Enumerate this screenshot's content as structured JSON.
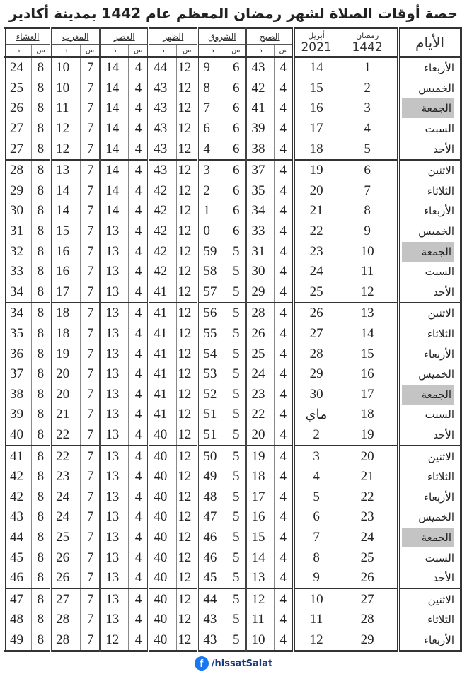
{
  "title": "حصة أوقات الصلاة لشهر رمضان المعظم عام 1442 بمدينة أكادير",
  "headers": {
    "days": "الأيام",
    "ramadan": "رمضان",
    "ramadan_year": "1442",
    "april": "أبريل",
    "april_year": "2021",
    "prayers": [
      "العشاء",
      "المغرب",
      "العصر",
      "الظهر",
      "الشروق",
      "الصبح"
    ],
    "minute_abbr": "د",
    "hour_abbr": "س"
  },
  "highlight_color": "#c4c4c4",
  "rows": [
    {
      "day": "الأربعاء",
      "ramadan": "1",
      "greg": "14",
      "fajr": [
        "4",
        "43"
      ],
      "shuruq": [
        "6",
        "9"
      ],
      "dhuhr": [
        "12",
        "44"
      ],
      "asr": [
        "4",
        "14"
      ],
      "maghrib": [
        "7",
        "10"
      ],
      "isha": [
        "8",
        "24"
      ]
    },
    {
      "day": "الخميس",
      "ramadan": "2",
      "greg": "15",
      "fajr": [
        "4",
        "42"
      ],
      "shuruq": [
        "6",
        "8"
      ],
      "dhuhr": [
        "12",
        "43"
      ],
      "asr": [
        "4",
        "14"
      ],
      "maghrib": [
        "7",
        "10"
      ],
      "isha": [
        "8",
        "25"
      ]
    },
    {
      "day": "الجمعة",
      "ramadan": "3",
      "greg": "16",
      "fajr": [
        "4",
        "41"
      ],
      "shuruq": [
        "6",
        "7"
      ],
      "dhuhr": [
        "12",
        "43"
      ],
      "asr": [
        "4",
        "14"
      ],
      "maghrib": [
        "7",
        "11"
      ],
      "isha": [
        "8",
        "26"
      ],
      "friday": true
    },
    {
      "day": "السبت",
      "ramadan": "4",
      "greg": "17",
      "fajr": [
        "4",
        "39"
      ],
      "shuruq": [
        "6",
        "6"
      ],
      "dhuhr": [
        "12",
        "43"
      ],
      "asr": [
        "4",
        "14"
      ],
      "maghrib": [
        "7",
        "12"
      ],
      "isha": [
        "8",
        "27"
      ]
    },
    {
      "day": "الأحد",
      "ramadan": "5",
      "greg": "18",
      "fajr": [
        "4",
        "38"
      ],
      "shuruq": [
        "6",
        "4"
      ],
      "dhuhr": [
        "12",
        "43"
      ],
      "asr": [
        "4",
        "14"
      ],
      "maghrib": [
        "7",
        "12"
      ],
      "isha": [
        "8",
        "27"
      ]
    },
    {
      "day": "الاثنين",
      "ramadan": "6",
      "greg": "19",
      "fajr": [
        "4",
        "37"
      ],
      "shuruq": [
        "6",
        "3"
      ],
      "dhuhr": [
        "12",
        "43"
      ],
      "asr": [
        "4",
        "14"
      ],
      "maghrib": [
        "7",
        "13"
      ],
      "isha": [
        "8",
        "28"
      ],
      "week_start": true
    },
    {
      "day": "الثلاثاء",
      "ramadan": "7",
      "greg": "20",
      "fajr": [
        "4",
        "35"
      ],
      "shuruq": [
        "6",
        "2"
      ],
      "dhuhr": [
        "12",
        "42"
      ],
      "asr": [
        "4",
        "14"
      ],
      "maghrib": [
        "7",
        "14"
      ],
      "isha": [
        "8",
        "29"
      ]
    },
    {
      "day": "الأربعاء",
      "ramadan": "8",
      "greg": "21",
      "fajr": [
        "4",
        "34"
      ],
      "shuruq": [
        "6",
        "1"
      ],
      "dhuhr": [
        "12",
        "42"
      ],
      "asr": [
        "4",
        "14"
      ],
      "maghrib": [
        "7",
        "14"
      ],
      "isha": [
        "8",
        "30"
      ]
    },
    {
      "day": "الخميس",
      "ramadan": "9",
      "greg": "22",
      "fajr": [
        "4",
        "33"
      ],
      "shuruq": [
        "6",
        "0"
      ],
      "dhuhr": [
        "12",
        "42"
      ],
      "asr": [
        "4",
        "13"
      ],
      "maghrib": [
        "7",
        "15"
      ],
      "isha": [
        "8",
        "31"
      ]
    },
    {
      "day": "الجمعة",
      "ramadan": "10",
      "greg": "23",
      "fajr": [
        "4",
        "31"
      ],
      "shuruq": [
        "5",
        "59"
      ],
      "dhuhr": [
        "12",
        "42"
      ],
      "asr": [
        "4",
        "13"
      ],
      "maghrib": [
        "7",
        "16"
      ],
      "isha": [
        "8",
        "32"
      ],
      "friday": true
    },
    {
      "day": "السبت",
      "ramadan": "11",
      "greg": "24",
      "fajr": [
        "4",
        "30"
      ],
      "shuruq": [
        "5",
        "58"
      ],
      "dhuhr": [
        "12",
        "42"
      ],
      "asr": [
        "4",
        "13"
      ],
      "maghrib": [
        "7",
        "16"
      ],
      "isha": [
        "8",
        "33"
      ]
    },
    {
      "day": "الأحد",
      "ramadan": "12",
      "greg": "25",
      "fajr": [
        "4",
        "29"
      ],
      "shuruq": [
        "5",
        "57"
      ],
      "dhuhr": [
        "12",
        "41"
      ],
      "asr": [
        "4",
        "13"
      ],
      "maghrib": [
        "7",
        "17"
      ],
      "isha": [
        "8",
        "34"
      ]
    },
    {
      "day": "الاثنين",
      "ramadan": "13",
      "greg": "26",
      "fajr": [
        "4",
        "28"
      ],
      "shuruq": [
        "5",
        "56"
      ],
      "dhuhr": [
        "12",
        "41"
      ],
      "asr": [
        "4",
        "13"
      ],
      "maghrib": [
        "7",
        "18"
      ],
      "isha": [
        "8",
        "34"
      ],
      "week_start": true
    },
    {
      "day": "الثلاثاء",
      "ramadan": "14",
      "greg": "27",
      "fajr": [
        "4",
        "26"
      ],
      "shuruq": [
        "5",
        "55"
      ],
      "dhuhr": [
        "12",
        "41"
      ],
      "asr": [
        "4",
        "13"
      ],
      "maghrib": [
        "7",
        "18"
      ],
      "isha": [
        "8",
        "35"
      ]
    },
    {
      "day": "الأربعاء",
      "ramadan": "15",
      "greg": "28",
      "fajr": [
        "4",
        "25"
      ],
      "shuruq": [
        "5",
        "54"
      ],
      "dhuhr": [
        "12",
        "41"
      ],
      "asr": [
        "4",
        "13"
      ],
      "maghrib": [
        "7",
        "19"
      ],
      "isha": [
        "8",
        "36"
      ]
    },
    {
      "day": "الخميس",
      "ramadan": "16",
      "greg": "29",
      "fajr": [
        "4",
        "24"
      ],
      "shuruq": [
        "5",
        "53"
      ],
      "dhuhr": [
        "12",
        "41"
      ],
      "asr": [
        "4",
        "13"
      ],
      "maghrib": [
        "7",
        "20"
      ],
      "isha": [
        "8",
        "37"
      ]
    },
    {
      "day": "الجمعة",
      "ramadan": "17",
      "greg": "30",
      "fajr": [
        "4",
        "23"
      ],
      "shuruq": [
        "5",
        "52"
      ],
      "dhuhr": [
        "12",
        "41"
      ],
      "asr": [
        "4",
        "13"
      ],
      "maghrib": [
        "7",
        "20"
      ],
      "isha": [
        "8",
        "38"
      ],
      "friday": true
    },
    {
      "day": "السبت",
      "ramadan": "18",
      "greg": "ماي",
      "fajr": [
        "4",
        "22"
      ],
      "shuruq": [
        "5",
        "51"
      ],
      "dhuhr": [
        "12",
        "41"
      ],
      "asr": [
        "4",
        "13"
      ],
      "maghrib": [
        "7",
        "21"
      ],
      "isha": [
        "8",
        "39"
      ]
    },
    {
      "day": "الأحد",
      "ramadan": "19",
      "greg": "2",
      "fajr": [
        "4",
        "20"
      ],
      "shuruq": [
        "5",
        "51"
      ],
      "dhuhr": [
        "12",
        "40"
      ],
      "asr": [
        "4",
        "13"
      ],
      "maghrib": [
        "7",
        "22"
      ],
      "isha": [
        "8",
        "40"
      ]
    },
    {
      "day": "الاثنين",
      "ramadan": "20",
      "greg": "3",
      "fajr": [
        "4",
        "19"
      ],
      "shuruq": [
        "5",
        "50"
      ],
      "dhuhr": [
        "12",
        "40"
      ],
      "asr": [
        "4",
        "13"
      ],
      "maghrib": [
        "7",
        "22"
      ],
      "isha": [
        "8",
        "41"
      ],
      "week_start": true
    },
    {
      "day": "الثلاثاء",
      "ramadan": "21",
      "greg": "4",
      "fajr": [
        "4",
        "18"
      ],
      "shuruq": [
        "5",
        "49"
      ],
      "dhuhr": [
        "12",
        "40"
      ],
      "asr": [
        "4",
        "13"
      ],
      "maghrib": [
        "7",
        "23"
      ],
      "isha": [
        "8",
        "42"
      ]
    },
    {
      "day": "الأربعاء",
      "ramadan": "22",
      "greg": "5",
      "fajr": [
        "4",
        "17"
      ],
      "shuruq": [
        "5",
        "48"
      ],
      "dhuhr": [
        "12",
        "40"
      ],
      "asr": [
        "4",
        "13"
      ],
      "maghrib": [
        "7",
        "24"
      ],
      "isha": [
        "8",
        "42"
      ]
    },
    {
      "day": "الخميس",
      "ramadan": "23",
      "greg": "6",
      "fajr": [
        "4",
        "16"
      ],
      "shuruq": [
        "5",
        "47"
      ],
      "dhuhr": [
        "12",
        "40"
      ],
      "asr": [
        "4",
        "13"
      ],
      "maghrib": [
        "7",
        "24"
      ],
      "isha": [
        "8",
        "43"
      ]
    },
    {
      "day": "الجمعة",
      "ramadan": "24",
      "greg": "7",
      "fajr": [
        "4",
        "15"
      ],
      "shuruq": [
        "5",
        "46"
      ],
      "dhuhr": [
        "12",
        "40"
      ],
      "asr": [
        "4",
        "13"
      ],
      "maghrib": [
        "7",
        "25"
      ],
      "isha": [
        "8",
        "44"
      ],
      "friday": true
    },
    {
      "day": "السبت",
      "ramadan": "25",
      "greg": "8",
      "fajr": [
        "4",
        "14"
      ],
      "shuruq": [
        "5",
        "46"
      ],
      "dhuhr": [
        "12",
        "40"
      ],
      "asr": [
        "4",
        "13"
      ],
      "maghrib": [
        "7",
        "26"
      ],
      "isha": [
        "8",
        "45"
      ]
    },
    {
      "day": "الأحد",
      "ramadan": "26",
      "greg": "9",
      "fajr": [
        "4",
        "13"
      ],
      "shuruq": [
        "5",
        "45"
      ],
      "dhuhr": [
        "12",
        "40"
      ],
      "asr": [
        "4",
        "13"
      ],
      "maghrib": [
        "7",
        "26"
      ],
      "isha": [
        "8",
        "46"
      ]
    },
    {
      "day": "الاثنين",
      "ramadan": "27",
      "greg": "10",
      "fajr": [
        "4",
        "12"
      ],
      "shuruq": [
        "5",
        "44"
      ],
      "dhuhr": [
        "12",
        "40"
      ],
      "asr": [
        "4",
        "13"
      ],
      "maghrib": [
        "7",
        "27"
      ],
      "isha": [
        "8",
        "47"
      ],
      "week_start": true
    },
    {
      "day": "الثلاثاء",
      "ramadan": "28",
      "greg": "11",
      "fajr": [
        "4",
        "11"
      ],
      "shuruq": [
        "5",
        "43"
      ],
      "dhuhr": [
        "12",
        "40"
      ],
      "asr": [
        "4",
        "13"
      ],
      "maghrib": [
        "7",
        "28"
      ],
      "isha": [
        "8",
        "48"
      ]
    },
    {
      "day": "الأربعاء",
      "ramadan": "29",
      "greg": "12",
      "fajr": [
        "4",
        "10"
      ],
      "shuruq": [
        "5",
        "43"
      ],
      "dhuhr": [
        "12",
        "40"
      ],
      "asr": [
        "4",
        "12"
      ],
      "maghrib": [
        "7",
        "28"
      ],
      "isha": [
        "8",
        "49"
      ]
    }
  ],
  "footer": {
    "icon": "facebook-icon",
    "handle": "/hissatSalat"
  }
}
